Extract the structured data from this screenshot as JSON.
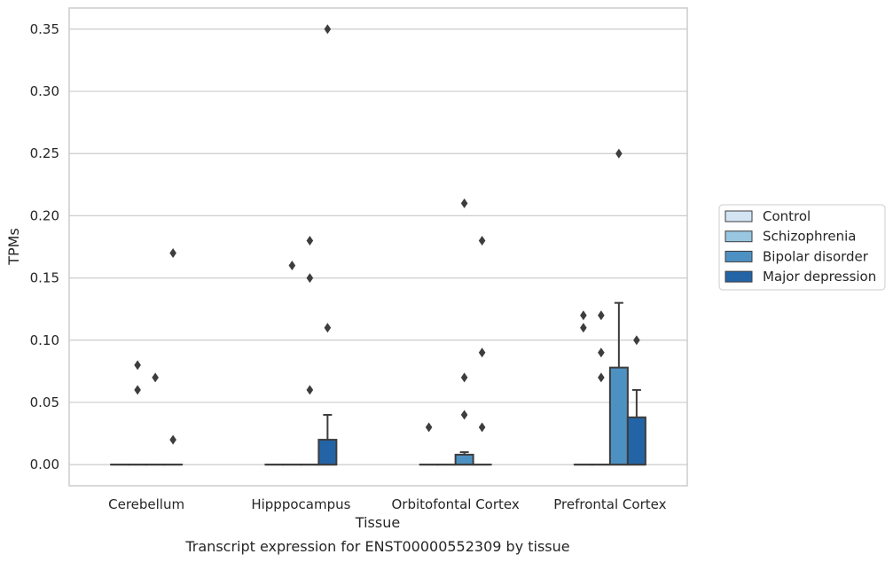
{
  "chart_data": {
    "type": "box",
    "xlabel": "Tissue",
    "ylabel": "TPMs",
    "caption": "Transcript expression for ENST00000552309 by tissue",
    "ylim": [
      -0.017,
      0.367
    ],
    "yticks": [
      0.0,
      0.05,
      0.1,
      0.15,
      0.2,
      0.25,
      0.3,
      0.35
    ],
    "ytick_labels": [
      "0.00",
      "0.05",
      "0.10",
      "0.15",
      "0.20",
      "0.25",
      "0.30",
      "0.35"
    ],
    "grid": "horizontal",
    "legend_position": "right",
    "categories": [
      "Cerebellum",
      "Hipppocampus",
      "Orbitofontal Cortex",
      "Prefrontal Cortex"
    ],
    "series": [
      {
        "name": "Control",
        "color": "#d3e4f3",
        "boxes": [
          {
            "q1": 0.0,
            "median": 0.0,
            "q3": 0.0,
            "whisker_low": 0.0,
            "whisker_high": 0.0,
            "outliers": []
          },
          {
            "q1": 0.0,
            "median": 0.0,
            "q3": 0.0,
            "whisker_low": 0.0,
            "whisker_high": 0.0,
            "outliers": []
          },
          {
            "q1": 0.0,
            "median": 0.0,
            "q3": 0.0,
            "whisker_low": 0.0,
            "whisker_high": 0.0,
            "outliers": [
              0.03
            ]
          },
          {
            "q1": 0.0,
            "median": 0.0,
            "q3": 0.0,
            "whisker_low": 0.0,
            "whisker_high": 0.0,
            "outliers": [
              0.11,
              0.12
            ]
          }
        ]
      },
      {
        "name": "Schizophrenia",
        "color": "#99c6e0",
        "boxes": [
          {
            "q1": 0.0,
            "median": 0.0,
            "q3": 0.0,
            "whisker_low": 0.0,
            "whisker_high": 0.0,
            "outliers": [
              0.06,
              0.08
            ]
          },
          {
            "q1": 0.0,
            "median": 0.0,
            "q3": 0.0,
            "whisker_low": 0.0,
            "whisker_high": 0.0,
            "outliers": [
              0.16
            ]
          },
          {
            "q1": 0.0,
            "median": 0.0,
            "q3": 0.0,
            "whisker_low": 0.0,
            "whisker_high": 0.0,
            "outliers": []
          },
          {
            "q1": 0.0,
            "median": 0.0,
            "q3": 0.0,
            "whisker_low": 0.0,
            "whisker_high": 0.0,
            "outliers": [
              0.07,
              0.09,
              0.12
            ]
          }
        ]
      },
      {
        "name": "Bipolar disorder",
        "color": "#4d91c3",
        "boxes": [
          {
            "q1": 0.0,
            "median": 0.0,
            "q3": 0.0,
            "whisker_low": 0.0,
            "whisker_high": 0.0,
            "outliers": [
              0.07
            ]
          },
          {
            "q1": 0.0,
            "median": 0.0,
            "q3": 0.0,
            "whisker_low": 0.0,
            "whisker_high": 0.0,
            "outliers": [
              0.06,
              0.15,
              0.18
            ]
          },
          {
            "q1": 0.0,
            "median": 0.0,
            "q3": 0.008,
            "whisker_low": 0.0,
            "whisker_high": 0.01,
            "outliers": [
              0.04,
              0.07,
              0.21
            ]
          },
          {
            "q1": 0.0,
            "median": 0.0,
            "q3": 0.078,
            "whisker_low": 0.0,
            "whisker_high": 0.13,
            "outliers": [
              0.25
            ]
          }
        ]
      },
      {
        "name": "Major depression",
        "color": "#2264a6",
        "boxes": [
          {
            "q1": 0.0,
            "median": 0.0,
            "q3": 0.0,
            "whisker_low": 0.0,
            "whisker_high": 0.0,
            "outliers": [
              0.02,
              0.17
            ]
          },
          {
            "q1": 0.0,
            "median": 0.0,
            "q3": 0.02,
            "whisker_low": 0.0,
            "whisker_high": 0.04,
            "outliers": [
              0.11,
              0.35
            ]
          },
          {
            "q1": 0.0,
            "median": 0.0,
            "q3": 0.0,
            "whisker_low": 0.0,
            "whisker_high": 0.0,
            "outliers": [
              0.03,
              0.09,
              0.18
            ]
          },
          {
            "q1": 0.0,
            "median": 0.0,
            "q3": 0.038,
            "whisker_low": 0.0,
            "whisker_high": 0.06,
            "outliers": [
              0.1
            ]
          }
        ]
      }
    ]
  }
}
